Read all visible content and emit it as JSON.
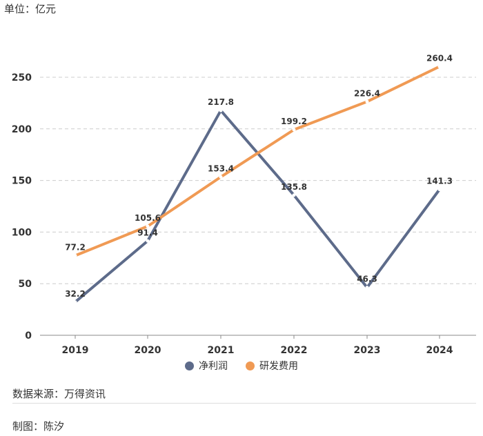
{
  "unit_label": "单位：亿元",
  "source_text": "数据来源：万得资讯",
  "credit_text": "制图：陈汐",
  "colors": {
    "net_profit": "#5d6b8a",
    "rd_expense": "#f09a54",
    "grid": "#cccccc",
    "axis": "#888888"
  },
  "chart_data": {
    "type": "line",
    "categories": [
      "2019",
      "2020",
      "2021",
      "2022",
      "2023",
      "2024"
    ],
    "yticks": [
      0,
      50,
      100,
      150,
      200,
      250
    ],
    "ylim": [
      0,
      260
    ],
    "grid": true,
    "legend_position": "bottom",
    "series": [
      {
        "name": "净利润",
        "values": [
          32.2,
          91.4,
          217.8,
          135.8,
          46.3,
          141.3
        ],
        "labels": [
          "32.2",
          "91.4",
          "217.8",
          "135.8",
          "46.3",
          "141.3"
        ]
      },
      {
        "name": "研发费用",
        "values": [
          77.2,
          105.6,
          153.4,
          199.2,
          226.4,
          260.4
        ],
        "labels": [
          "77.2",
          "105.6",
          "153.4",
          "199.2",
          "226.4",
          "260.4"
        ]
      }
    ]
  }
}
